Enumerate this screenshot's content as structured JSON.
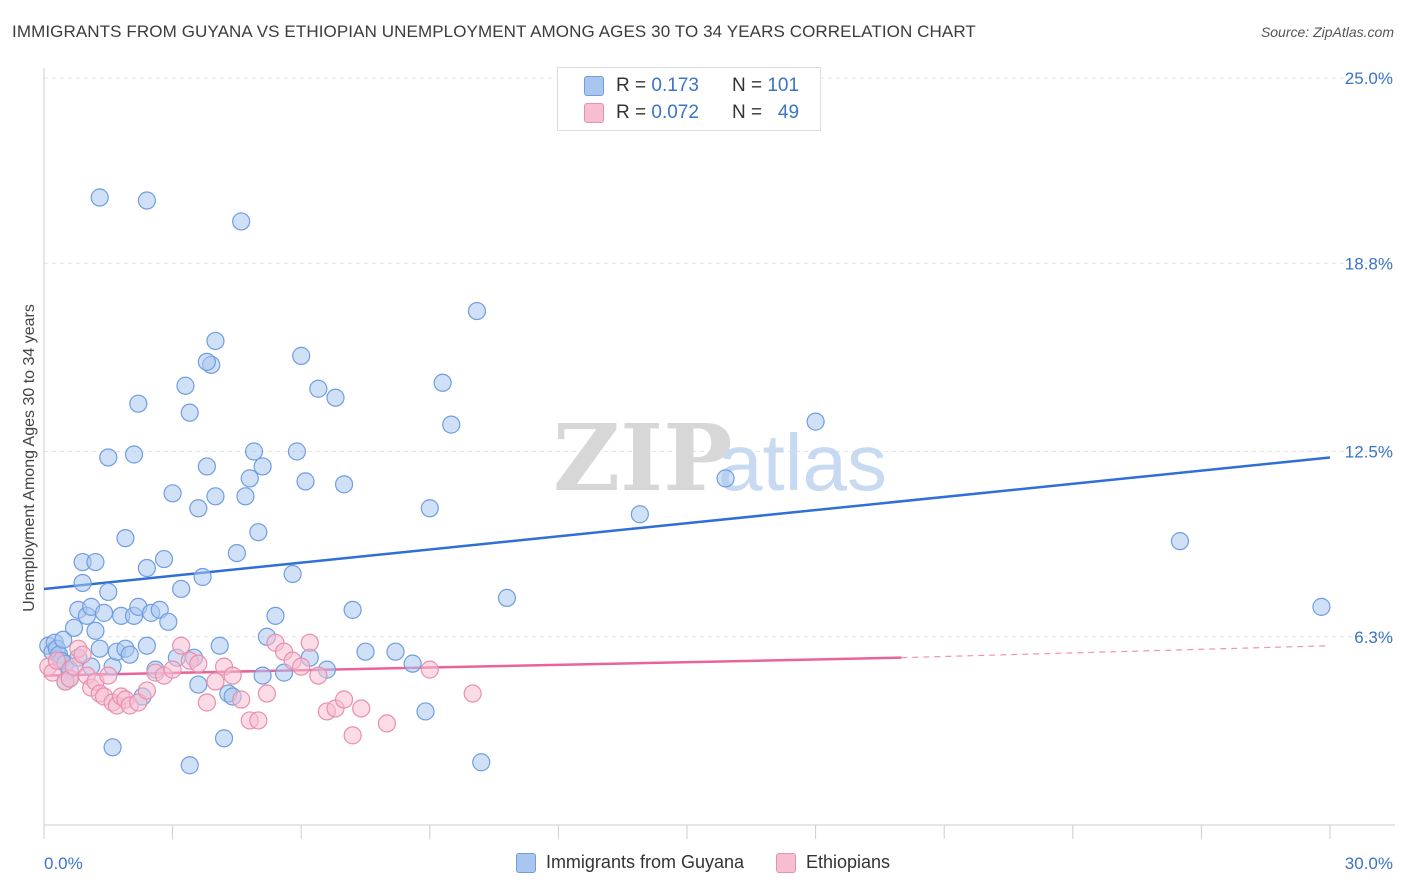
{
  "title": "IMMIGRANTS FROM GUYANA VS ETHIOPIAN UNEMPLOYMENT AMONG AGES 30 TO 34 YEARS CORRELATION CHART",
  "source": "Source: ZipAtlas.com",
  "watermark": {
    "zip": "ZIP",
    "atlas": "atlas"
  },
  "legend_top": [
    {
      "r_label": "R =",
      "r_value": "0.173",
      "n_label": "N =",
      "n_value": "101",
      "color": "#a9c6ee",
      "stroke": "#6f9ee0"
    },
    {
      "r_label": "R =",
      "r_value": "0.072",
      "n_label": "N =",
      "n_value": "49",
      "color": "#f6bed1",
      "stroke": "#e98fae"
    }
  ],
  "legend_bottom": [
    {
      "label": "Immigrants from Guyana",
      "color": "#a9c6ee",
      "stroke": "#6f9ee0"
    },
    {
      "label": "Ethiopians",
      "color": "#f6bed1",
      "stroke": "#e98fae"
    }
  ],
  "chart_data": {
    "type": "scatter",
    "title": "IMMIGRANTS FROM GUYANA VS ETHIOPIAN UNEMPLOYMENT AMONG AGES 30 TO 34 YEARS CORRELATION CHART",
    "xlabel": "",
    "ylabel": "Unemployment Among Ages 30 to 34 years",
    "xlim": [
      0,
      30
    ],
    "ylim": [
      0,
      25
    ],
    "x_tick_labels": [
      {
        "value": 0,
        "label": "0.0%"
      },
      {
        "value": 30,
        "label": "30.0%"
      }
    ],
    "y_tick_labels": [
      {
        "value": 6.3,
        "label": "6.3%"
      },
      {
        "value": 12.5,
        "label": "12.5%"
      },
      {
        "value": 18.8,
        "label": "18.8%"
      },
      {
        "value": 25.0,
        "label": "25.0%"
      }
    ],
    "grid": true,
    "legend_position": "top-center",
    "series": [
      {
        "name": "Immigrants from Guyana",
        "color": "#6f9ee0",
        "fill": "#a9c6ee",
        "trend": {
          "x": [
            0,
            30
          ],
          "y": [
            7.9,
            12.3
          ],
          "color": "#2f6fd6"
        },
        "points": [
          [
            0.1,
            6.0
          ],
          [
            0.2,
            5.8
          ],
          [
            0.25,
            6.1
          ],
          [
            0.3,
            5.9
          ],
          [
            0.35,
            5.7
          ],
          [
            0.4,
            5.5
          ],
          [
            0.45,
            6.2
          ],
          [
            0.5,
            5.4
          ],
          [
            0.6,
            5.2
          ],
          [
            0.7,
            6.6
          ],
          [
            0.8,
            7.2
          ],
          [
            0.9,
            8.1
          ],
          [
            1.0,
            7.0
          ],
          [
            1.1,
            7.3
          ],
          [
            1.2,
            6.5
          ],
          [
            1.3,
            5.9
          ],
          [
            1.4,
            7.1
          ],
          [
            1.5,
            7.8
          ],
          [
            1.6,
            5.3
          ],
          [
            1.7,
            5.8
          ],
          [
            1.8,
            7.0
          ],
          [
            1.9,
            5.9
          ],
          [
            2.0,
            5.7
          ],
          [
            2.1,
            7.0
          ],
          [
            2.2,
            7.3
          ],
          [
            2.3,
            4.3
          ],
          [
            2.4,
            6.0
          ],
          [
            2.5,
            7.1
          ],
          [
            2.6,
            5.2
          ],
          [
            2.7,
            7.2
          ],
          [
            0.9,
            8.8
          ],
          [
            1.2,
            8.8
          ],
          [
            1.5,
            12.3
          ],
          [
            1.6,
            2.6
          ],
          [
            1.9,
            9.6
          ],
          [
            2.1,
            12.4
          ],
          [
            2.2,
            14.1
          ],
          [
            2.4,
            8.6
          ],
          [
            2.8,
            8.9
          ],
          [
            3.0,
            11.1
          ],
          [
            3.1,
            5.6
          ],
          [
            3.2,
            7.9
          ],
          [
            3.4,
            2.0
          ],
          [
            3.5,
            5.6
          ],
          [
            3.6,
            4.7
          ],
          [
            3.7,
            8.3
          ],
          [
            3.8,
            12.0
          ],
          [
            3.9,
            15.4
          ],
          [
            4.0,
            11.0
          ],
          [
            4.2,
            2.9
          ],
          [
            4.3,
            4.4
          ],
          [
            4.4,
            4.3
          ],
          [
            4.5,
            9.1
          ],
          [
            4.6,
            20.2
          ],
          [
            4.7,
            11.0
          ],
          [
            4.8,
            11.6
          ],
          [
            4.9,
            12.5
          ],
          [
            5.0,
            9.8
          ],
          [
            5.1,
            5.0
          ],
          [
            5.2,
            6.3
          ],
          [
            5.4,
            7.0
          ],
          [
            5.6,
            5.1
          ],
          [
            5.8,
            8.4
          ],
          [
            6.0,
            15.7
          ],
          [
            6.2,
            5.6
          ],
          [
            6.4,
            14.6
          ],
          [
            6.6,
            5.2
          ],
          [
            6.8,
            14.3
          ],
          [
            7.0,
            11.4
          ],
          [
            7.2,
            7.2
          ],
          [
            7.5,
            5.8
          ],
          [
            8.2,
            5.8
          ],
          [
            8.6,
            5.4
          ],
          [
            8.9,
            3.8
          ],
          [
            9.0,
            10.6
          ],
          [
            9.3,
            14.8
          ],
          [
            9.5,
            13.4
          ],
          [
            10.1,
            17.2
          ],
          [
            10.2,
            2.1
          ],
          [
            10.8,
            7.6
          ],
          [
            1.3,
            21.0
          ],
          [
            2.4,
            20.9
          ],
          [
            3.3,
            14.7
          ],
          [
            3.4,
            13.8
          ],
          [
            3.8,
            15.5
          ],
          [
            4.0,
            16.2
          ],
          [
            5.1,
            12.0
          ],
          [
            5.9,
            12.5
          ],
          [
            6.1,
            11.5
          ],
          [
            3.6,
            10.6
          ],
          [
            13.9,
            10.4
          ],
          [
            15.9,
            11.6
          ],
          [
            18.0,
            13.5
          ],
          [
            26.5,
            9.5
          ],
          [
            29.8,
            7.3
          ],
          [
            0.6,
            4.9
          ],
          [
            0.8,
            5.6
          ],
          [
            1.1,
            5.3
          ],
          [
            2.9,
            6.8
          ],
          [
            4.1,
            6.0
          ],
          [
            0.5,
            4.8
          ]
        ]
      },
      {
        "name": "Ethiopians",
        "color": "#e98fae",
        "fill": "#f6bed1",
        "trend": {
          "x": [
            0,
            20
          ],
          "y": [
            5.0,
            5.6
          ],
          "color": "#e8649a",
          "dashed_x": [
            20,
            30
          ],
          "dashed_y": [
            5.6,
            6.0
          ]
        },
        "points": [
          [
            0.1,
            5.3
          ],
          [
            0.2,
            5.1
          ],
          [
            0.3,
            5.5
          ],
          [
            0.5,
            4.8
          ],
          [
            0.6,
            4.9
          ],
          [
            0.7,
            5.3
          ],
          [
            0.8,
            5.9
          ],
          [
            0.9,
            5.7
          ],
          [
            1.0,
            5.0
          ],
          [
            1.1,
            4.6
          ],
          [
            1.2,
            4.8
          ],
          [
            1.3,
            4.4
          ],
          [
            1.4,
            4.3
          ],
          [
            1.5,
            5.0
          ],
          [
            1.6,
            4.1
          ],
          [
            1.7,
            4.0
          ],
          [
            1.8,
            4.3
          ],
          [
            1.9,
            4.2
          ],
          [
            2.0,
            4.0
          ],
          [
            2.2,
            4.1
          ],
          [
            2.4,
            4.5
          ],
          [
            2.6,
            5.1
          ],
          [
            2.8,
            5.0
          ],
          [
            3.0,
            5.2
          ],
          [
            3.2,
            6.0
          ],
          [
            3.4,
            5.5
          ],
          [
            3.6,
            5.4
          ],
          [
            3.8,
            4.1
          ],
          [
            4.0,
            4.8
          ],
          [
            4.2,
            5.3
          ],
          [
            4.4,
            5.0
          ],
          [
            4.6,
            4.2
          ],
          [
            4.8,
            3.5
          ],
          [
            5.0,
            3.5
          ],
          [
            5.2,
            4.4
          ],
          [
            5.4,
            6.1
          ],
          [
            5.6,
            5.8
          ],
          [
            5.8,
            5.5
          ],
          [
            6.0,
            5.3
          ],
          [
            6.2,
            6.1
          ],
          [
            6.4,
            5.0
          ],
          [
            6.6,
            3.8
          ],
          [
            6.8,
            3.9
          ],
          [
            7.0,
            4.2
          ],
          [
            7.2,
            3.0
          ],
          [
            7.4,
            3.9
          ],
          [
            8.0,
            3.4
          ],
          [
            9.0,
            5.2
          ],
          [
            10.0,
            4.4
          ]
        ]
      }
    ]
  }
}
